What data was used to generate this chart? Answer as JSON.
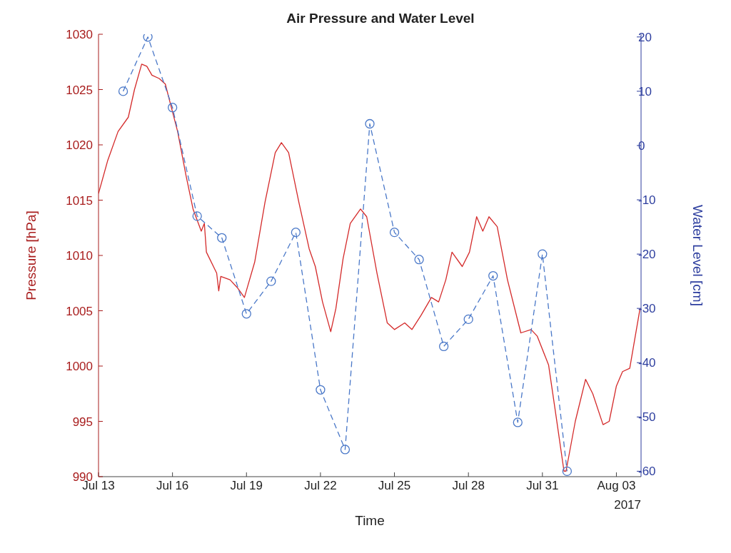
{
  "chart_data": {
    "type": "line",
    "title": "Air Pressure and Water Level",
    "xlabel": "Time",
    "ylabel": "Pressure [hPa]",
    "y2label": "Water Level [cm]",
    "annotations": [
      "2017"
    ],
    "xlim": [
      "2017-07-13",
      "2017-08-04"
    ],
    "xticks": [
      {
        "value": "2017-07-13",
        "label": "Jul 13"
      },
      {
        "value": "2017-07-16",
        "label": "Jul 16"
      },
      {
        "value": "2017-07-19",
        "label": "Jul 19"
      },
      {
        "value": "2017-07-22",
        "label": "Jul 22"
      },
      {
        "value": "2017-07-25",
        "label": "Jul 25"
      },
      {
        "value": "2017-07-28",
        "label": "Jul 28"
      },
      {
        "value": "2017-07-31",
        "label": "Jul 31"
      },
      {
        "value": "2017-08-03",
        "label": "Aug 03"
      }
    ],
    "ylim": [
      990,
      1030
    ],
    "yticks": [
      990,
      995,
      1000,
      1005,
      1010,
      1015,
      1020,
      1025,
      1030
    ],
    "y2lim": [
      -61,
      20.5
    ],
    "y2ticks": [
      -60,
      -50,
      -40,
      -30,
      -20,
      -10,
      0,
      10,
      20
    ],
    "grid": false,
    "series": [
      {
        "color": "#d42a2a",
        "marker": "none",
        "line_style": "solid",
        "x": [
          "2017-07-13T00:00",
          "2017-07-13T09:00",
          "2017-07-13T19:00",
          "2017-07-14T05:00",
          "2017-07-14T11:00",
          "2017-07-14T18:00",
          "2017-07-14T23:00",
          "2017-07-15T04:00",
          "2017-07-15T11:00",
          "2017-07-15T17:00",
          "2017-07-15T22:00",
          "2017-07-16T05:00",
          "2017-07-16T13:00",
          "2017-07-16T20:00",
          "2017-07-17T00:00",
          "2017-07-17T04:00",
          "2017-07-17T07:00",
          "2017-07-17T09:00",
          "2017-07-17T19:00",
          "2017-07-17T21:00",
          "2017-07-17T23:00",
          "2017-07-18T08:00",
          "2017-07-18T15:00",
          "2017-07-18T22:00",
          "2017-07-19T08:00",
          "2017-07-19T18:00",
          "2017-07-20T04:00",
          "2017-07-20T10:00",
          "2017-07-20T17:00",
          "2017-07-21T03:00",
          "2017-07-21T13:00",
          "2017-07-21T19:00",
          "2017-07-22T02:00",
          "2017-07-22T10:00",
          "2017-07-22T15:00",
          "2017-07-22T22:00",
          "2017-07-23T05:00",
          "2017-07-23T15:00",
          "2017-07-23T21:00",
          "2017-07-24T07:00",
          "2017-07-24T17:00",
          "2017-07-25T00:00",
          "2017-07-25T10:00",
          "2017-07-25T17:00",
          "2017-07-26T02:00",
          "2017-07-26T12:00",
          "2017-07-26T19:00",
          "2017-07-27T02:00",
          "2017-07-27T08:00",
          "2017-07-27T18:00",
          "2017-07-28T01:00",
          "2017-07-28T08:00",
          "2017-07-28T14:00",
          "2017-07-28T20:00",
          "2017-07-29T04:00",
          "2017-07-29T14:00",
          "2017-07-30T03:00",
          "2017-07-30T13:00",
          "2017-07-30T19:00",
          "2017-07-31T06:00",
          "2017-07-31T12:00",
          "2017-07-31T21:00",
          "2017-07-31T23:00",
          "2017-08-01T08:00",
          "2017-08-01T18:00",
          "2017-08-02T01:00",
          "2017-08-02T11:00",
          "2017-08-02T17:00",
          "2017-08-03T00:00",
          "2017-08-03T06:00",
          "2017-08-03T13:00",
          "2017-08-03T23:00"
        ],
        "values": [
          1015.6,
          1018.6,
          1021.2,
          1022.5,
          1025,
          1027.3,
          1027.1,
          1026.3,
          1026,
          1025.5,
          1023.7,
          1021.2,
          1017.3,
          1014.2,
          1013.2,
          1012.2,
          1012.9,
          1010.3,
          1008.4,
          1006.8,
          1008.1,
          1007.8,
          1007.1,
          1006.2,
          1009.4,
          1014.8,
          1019.3,
          1020.2,
          1019.3,
          1014.8,
          1010.6,
          1009,
          1005.8,
          1003.1,
          1005.2,
          1009.7,
          1012.9,
          1014.2,
          1013.5,
          1008.4,
          1003.9,
          1003.3,
          1003.9,
          1003.3,
          1004.6,
          1006.2,
          1005.8,
          1007.8,
          1010.3,
          1009,
          1010.3,
          1013.5,
          1012.2,
          1013.5,
          1012.6,
          1007.8,
          1003,
          1003.3,
          1002.7,
          1000.1,
          996.3,
          990.5,
          990.5,
          995,
          998.8,
          997.5,
          994.7,
          995,
          998.2,
          999.5,
          999.8,
          1005.2
        ]
      },
      {
        "axis": "y2",
        "color": "#4a78c8",
        "marker": "circle",
        "line_style": "dashed",
        "x": [
          "2017-07-14",
          "2017-07-15",
          "2017-07-16",
          "2017-07-17",
          "2017-07-18",
          "2017-07-19",
          "2017-07-20",
          "2017-07-21",
          "2017-07-22",
          "2017-07-23",
          "2017-07-24",
          "2017-07-25",
          "2017-07-26",
          "2017-07-27",
          "2017-07-28",
          "2017-07-29",
          "2017-07-30",
          "2017-07-31",
          "2017-08-01"
        ],
        "values": [
          10,
          20,
          7,
          -13,
          -17,
          -31,
          -25,
          -16,
          -45,
          -56,
          4,
          -16,
          -21,
          -37,
          -32,
          -24,
          -51,
          -20,
          -60
        ]
      }
    ]
  }
}
